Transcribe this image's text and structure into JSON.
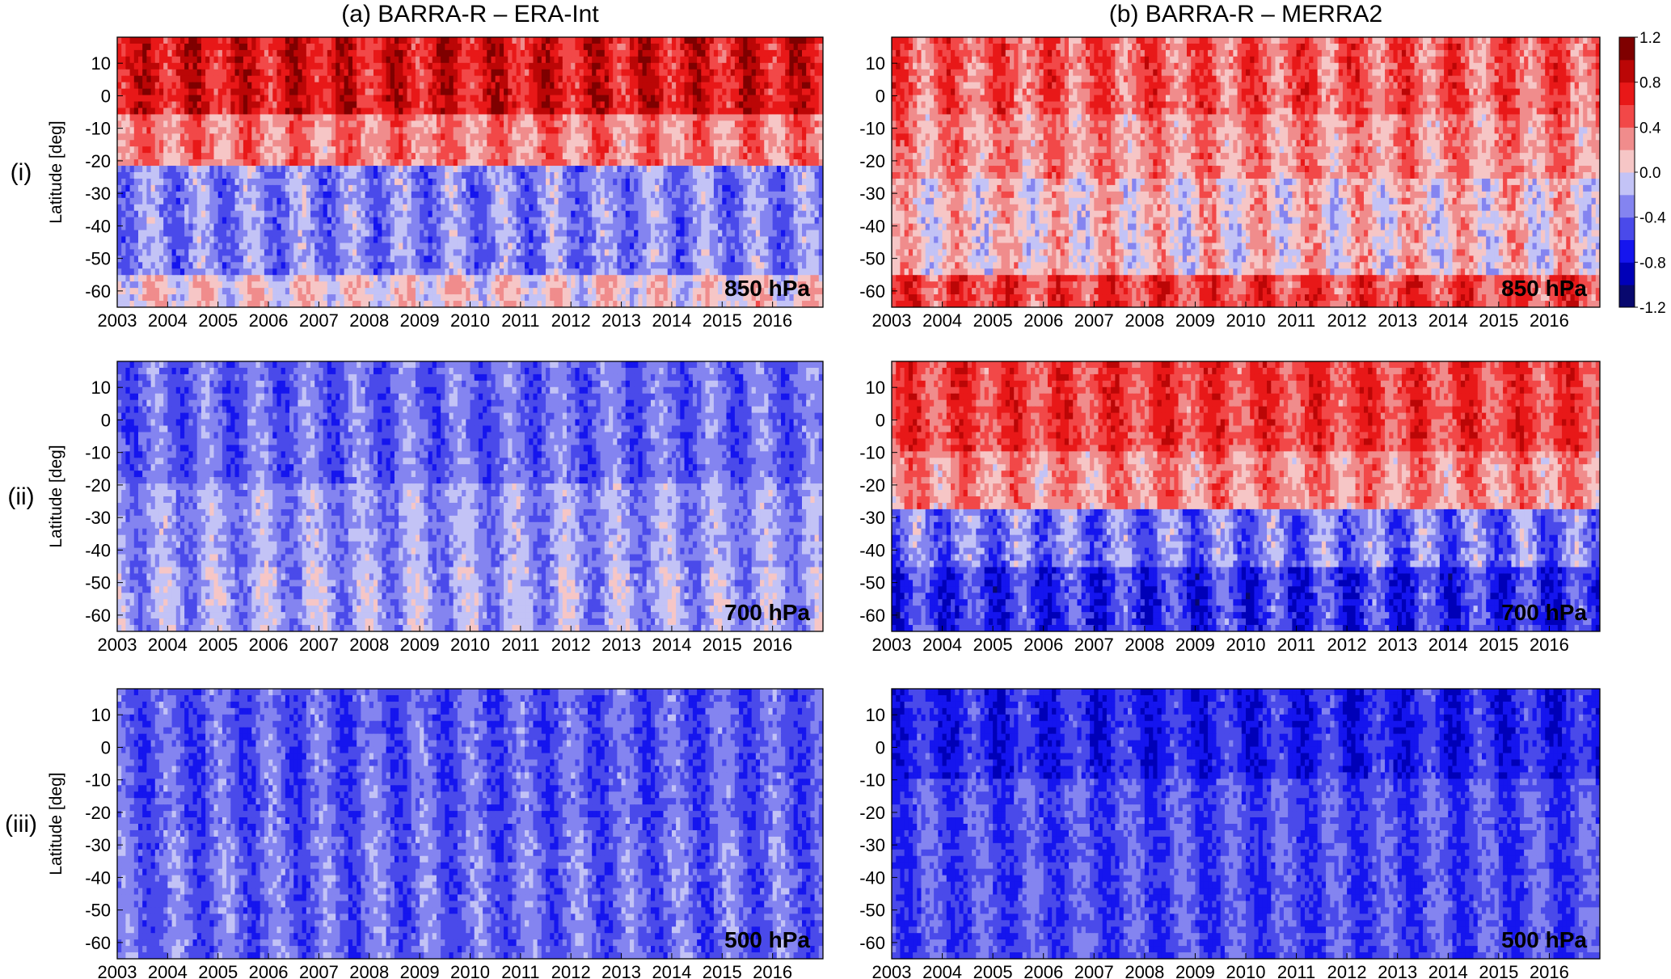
{
  "chart_data": [
    {
      "type": "heatmap",
      "panel": "(i)-(a)",
      "column_title": "(a) BARRA-R – ERA-Int",
      "row_label": "(i)",
      "ylabel": "Latitude [deg]",
      "annotation": "850 hPa",
      "xlim": [
        2003,
        2017
      ],
      "ylim": [
        -65,
        18
      ],
      "x_ticks": [
        "2003",
        "2004",
        "2005",
        "2006",
        "2007",
        "2008",
        "2009",
        "2010",
        "2011",
        "2012",
        "2013",
        "2014",
        "2015",
        "2016"
      ],
      "y_ticks": [
        "10",
        "0",
        "-10",
        "-20",
        "-30",
        "-40",
        "-50",
        "-60"
      ],
      "lat_bands": [
        {
          "lat_min": -5,
          "lat_max": 18,
          "mean_value": 0.75,
          "amp": 0.35
        },
        {
          "lat_min": -22,
          "lat_max": -5,
          "mean_value": 0.35,
          "amp": 0.3
        },
        {
          "lat_min": -55,
          "lat_max": -22,
          "mean_value": -0.3,
          "amp": 0.3
        },
        {
          "lat_min": -65,
          "lat_max": -55,
          "mean_value": 0.05,
          "amp": 0.3
        }
      ]
    },
    {
      "type": "heatmap",
      "panel": "(i)-(b)",
      "column_title": "(b) BARRA-R – MERRA2",
      "row_label": "",
      "ylabel": "",
      "annotation": "850 hPa",
      "xlim": [
        2003,
        2017
      ],
      "ylim": [
        -65,
        18
      ],
      "x_ticks": [
        "2003",
        "2004",
        "2005",
        "2006",
        "2007",
        "2008",
        "2009",
        "2010",
        "2011",
        "2012",
        "2013",
        "2014",
        "2015",
        "2016"
      ],
      "y_ticks": [
        "10",
        "0",
        "-10",
        "-20",
        "-30",
        "-40",
        "-50",
        "-60"
      ],
      "lat_bands": [
        {
          "lat_min": -5,
          "lat_max": 18,
          "mean_value": 0.45,
          "amp": 0.35
        },
        {
          "lat_min": -25,
          "lat_max": -5,
          "mean_value": 0.3,
          "amp": 0.3
        },
        {
          "lat_min": -55,
          "lat_max": -25,
          "mean_value": 0.1,
          "amp": 0.35
        },
        {
          "lat_min": -65,
          "lat_max": -55,
          "mean_value": 0.55,
          "amp": 0.35
        }
      ]
    },
    {
      "type": "heatmap",
      "panel": "(ii)-(a)",
      "column_title": "",
      "row_label": "(ii)",
      "ylabel": "Latitude [deg]",
      "annotation": "700 hPa",
      "xlim": [
        2003,
        2017
      ],
      "ylim": [
        -65,
        18
      ],
      "x_ticks": [
        "2003",
        "2004",
        "2005",
        "2006",
        "2007",
        "2008",
        "2009",
        "2010",
        "2011",
        "2012",
        "2013",
        "2014",
        "2015",
        "2016"
      ],
      "y_ticks": [
        "10",
        "0",
        "-10",
        "-20",
        "-30",
        "-40",
        "-50",
        "-60"
      ],
      "lat_bands": [
        {
          "lat_min": -20,
          "lat_max": 18,
          "mean_value": -0.4,
          "amp": 0.25
        },
        {
          "lat_min": -45,
          "lat_max": -20,
          "mean_value": -0.25,
          "amp": 0.25
        },
        {
          "lat_min": -65,
          "lat_max": -45,
          "mean_value": -0.2,
          "amp": 0.3
        }
      ]
    },
    {
      "type": "heatmap",
      "panel": "(ii)-(b)",
      "column_title": "",
      "row_label": "",
      "ylabel": "",
      "annotation": "700 hPa",
      "xlim": [
        2003,
        2017
      ],
      "ylim": [
        -65,
        18
      ],
      "x_ticks": [
        "2003",
        "2004",
        "2005",
        "2006",
        "2007",
        "2008",
        "2009",
        "2010",
        "2011",
        "2012",
        "2013",
        "2014",
        "2015",
        "2016"
      ],
      "y_ticks": [
        "10",
        "0",
        "-10",
        "-20",
        "-30",
        "-40",
        "-50",
        "-60"
      ],
      "lat_bands": [
        {
          "lat_min": -10,
          "lat_max": 18,
          "mean_value": 0.55,
          "amp": 0.3
        },
        {
          "lat_min": -28,
          "lat_max": -10,
          "mean_value": 0.3,
          "amp": 0.3
        },
        {
          "lat_min": -45,
          "lat_max": -28,
          "mean_value": -0.35,
          "amp": 0.35
        },
        {
          "lat_min": -65,
          "lat_max": -45,
          "mean_value": -0.6,
          "amp": 0.35
        }
      ]
    },
    {
      "type": "heatmap",
      "panel": "(iii)-(a)",
      "column_title": "",
      "row_label": "(iii)",
      "ylabel": "Latitude [deg]",
      "annotation": "500 hPa",
      "xlim": [
        2003,
        2017
      ],
      "ylim": [
        -65,
        18
      ],
      "x_ticks": [
        "2003",
        "2004",
        "2005",
        "2006",
        "2007",
        "2008",
        "2009",
        "2010",
        "2011",
        "2012",
        "2013",
        "2014",
        "2015",
        "2016"
      ],
      "y_ticks": [
        "10",
        "0",
        "-10",
        "-20",
        "-30",
        "-40",
        "-50",
        "-60"
      ],
      "lat_bands": [
        {
          "lat_min": -25,
          "lat_max": 18,
          "mean_value": -0.45,
          "amp": 0.25
        },
        {
          "lat_min": -65,
          "lat_max": -25,
          "mean_value": -0.4,
          "amp": 0.25
        }
      ]
    },
    {
      "type": "heatmap",
      "panel": "(iii)-(b)",
      "column_title": "",
      "row_label": "",
      "ylabel": "",
      "annotation": "500 hPa",
      "xlim": [
        2003,
        2017
      ],
      "ylim": [
        -65,
        18
      ],
      "x_ticks": [
        "2003",
        "2004",
        "2005",
        "2006",
        "2007",
        "2008",
        "2009",
        "2010",
        "2011",
        "2012",
        "2013",
        "2014",
        "2015",
        "2016"
      ],
      "y_ticks": [
        "10",
        "0",
        "-10",
        "-20",
        "-30",
        "-40",
        "-50",
        "-60"
      ],
      "lat_bands": [
        {
          "lat_min": -10,
          "lat_max": 18,
          "mean_value": -0.65,
          "amp": 0.25
        },
        {
          "lat_min": -65,
          "lat_max": -10,
          "mean_value": -0.5,
          "amp": 0.25
        }
      ]
    }
  ],
  "colorbar": {
    "range": [
      -1.2,
      1.2
    ],
    "tick_labels": [
      "1.2",
      "0.8",
      "0.4",
      "0.0",
      "-0.4",
      "-0.8",
      "-1.2"
    ],
    "levels": [
      -1.2,
      -1.0,
      -0.8,
      -0.6,
      -0.4,
      -0.2,
      0.0,
      0.2,
      0.4,
      0.6,
      0.8,
      1.0,
      1.2
    ],
    "colors": [
      "#08086e",
      "#0000b8",
      "#1515ee",
      "#4a4aea",
      "#8484f0",
      "#c3c3f6",
      "#f6c6c6",
      "#f08c8c",
      "#f24848",
      "#e81818",
      "#bb0606",
      "#7f0000"
    ]
  }
}
